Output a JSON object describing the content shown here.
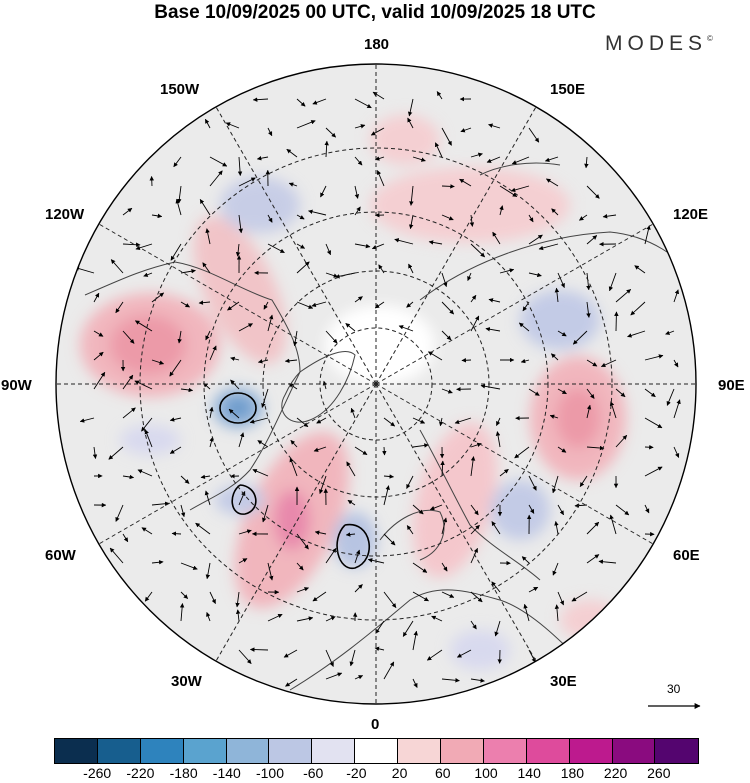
{
  "title": "Base 10/09/2025 00 UTC, valid 10/09/2025 18 UTC",
  "brand": {
    "name": "MODES",
    "mark": "©"
  },
  "longitude_labels": [
    "180",
    "150E",
    "120E",
    "90E",
    "60E",
    "30E",
    "0",
    "30W",
    "60W",
    "90W",
    "120W",
    "150W"
  ],
  "vector_scale": {
    "value": "30"
  },
  "colorbar": {
    "colors": [
      "#0b2e4f",
      "#175e8e",
      "#2e83bd",
      "#5aa3cf",
      "#8fb5d9",
      "#bcc7e4",
      "#e2e2f1",
      "#ffffff",
      "#f7d6d6",
      "#f1aab5",
      "#ec7fae",
      "#de4b9c",
      "#bd1a8e",
      "#8a0b7f",
      "#54056f"
    ],
    "ticks": [
      "-260",
      "-220",
      "-180",
      "-140",
      "-100",
      "-60",
      "-20",
      "20",
      "60",
      "100",
      "140",
      "180",
      "220",
      "260"
    ]
  },
  "palette": {
    "ocean": "#ebebeb",
    "grid": "#222222",
    "coast": "#444444"
  }
}
